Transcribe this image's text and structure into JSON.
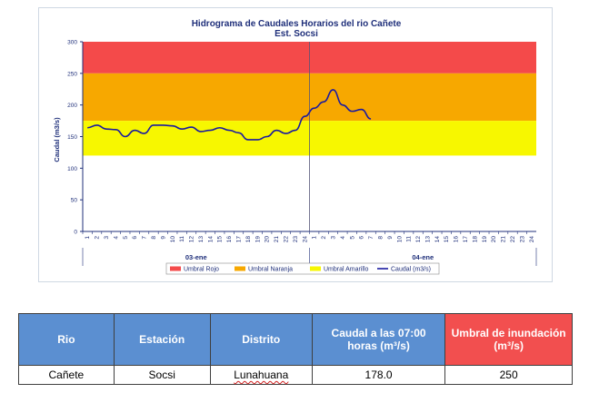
{
  "chart_data": {
    "type": "line",
    "title": "Hidrograma de Caudales Horarios del rio Cañete",
    "subtitle": "Est. Socsi",
    "ylabel": "Caudal  (m3/s)",
    "ylim": [
      0,
      300
    ],
    "yticks": [
      0,
      50,
      100,
      150,
      200,
      250,
      300
    ],
    "x_ticks_day1": [
      "1",
      "2",
      "3",
      "4",
      "5",
      "6",
      "7",
      "8",
      "9",
      "10",
      "11",
      "12",
      "13",
      "14",
      "15",
      "16",
      "17",
      "18",
      "19",
      "20",
      "21",
      "22",
      "23",
      "24"
    ],
    "x_ticks_day2": [
      "1",
      "2",
      "3",
      "4",
      "5",
      "6",
      "7",
      "8",
      "9",
      "10",
      "11",
      "12",
      "13",
      "14",
      "15",
      "16",
      "17",
      "18",
      "19",
      "20",
      "21",
      "22",
      "23",
      "24"
    ],
    "days": [
      "03-ene",
      "04-ene"
    ],
    "thresholds": [
      {
        "name": "Umbral Rojo",
        "from": 250,
        "to": 300,
        "color": "#f44a4a"
      },
      {
        "name": "Umbral Naranja",
        "from": 175,
        "to": 250,
        "color": "#f7a800"
      },
      {
        "name": "Umbral Amarillo",
        "from": 120,
        "to": 175,
        "color": "#f7f700"
      }
    ],
    "series": [
      {
        "name": "Caudal (m3/s)",
        "color": "#1a1aa0",
        "values": [
          164,
          168,
          162,
          161,
          150,
          160,
          155,
          168,
          168,
          167,
          162,
          165,
          158,
          160,
          164,
          160,
          156,
          145,
          145,
          150,
          160,
          155,
          160,
          182,
          195,
          205,
          224,
          200,
          190,
          193,
          178
        ]
      }
    ],
    "legend_position": "bottom"
  },
  "table": {
    "headers": [
      "Rio",
      "Estación",
      "Distrito",
      "Caudal a las 07:00 horas (m³/s)",
      "Umbral de inundación (m³/s)"
    ],
    "rows": [
      [
        "Cañete",
        "Socsi",
        "Lunahuana",
        "178.0",
        "250"
      ]
    ]
  }
}
